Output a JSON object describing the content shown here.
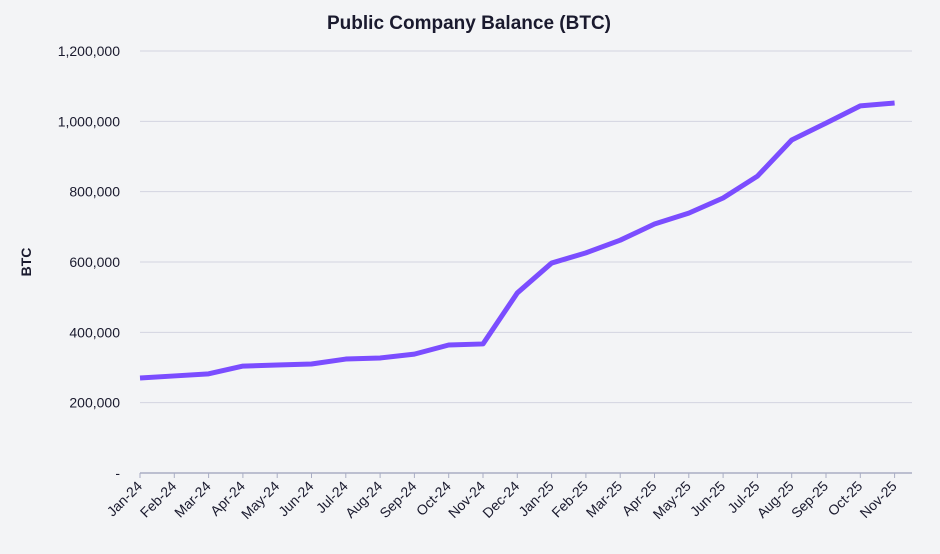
{
  "chart_data": {
    "type": "line",
    "title": "Public Company Balance (BTC)",
    "xlabel": "",
    "ylabel": "BTC",
    "ylim": [
      0,
      1200000
    ],
    "yticks": [
      0,
      200000,
      400000,
      600000,
      800000,
      1000000,
      1200000
    ],
    "ytick_labels": [
      "-",
      "200,000",
      "400,000",
      "600,000",
      "800,000",
      "1,000,000",
      "1,200,000"
    ],
    "grid": true,
    "line_color": "#7b4dff",
    "categories": [
      "Jan-24",
      "Feb-24",
      "Mar-24",
      "Apr-24",
      "May-24",
      "Jun-24",
      "Jul-24",
      "Aug-24",
      "Sep-24",
      "Oct-24",
      "Nov-24",
      "Dec-24",
      "Jan-25",
      "Feb-25",
      "Mar-25",
      "Apr-25",
      "May-25",
      "Jun-25",
      "Jul-25",
      "Aug-25",
      "Sep-25",
      "Oct-25",
      "Nov-25"
    ],
    "series": [
      {
        "name": "BTC",
        "values": [
          270000,
          276000,
          282000,
          304000,
          307000,
          310000,
          324000,
          327000,
          338000,
          364000,
          367000,
          512000,
          597000,
          626000,
          662000,
          708000,
          739000,
          782000,
          844000,
          947000,
          995000,
          1044000,
          1052000
        ]
      }
    ]
  }
}
